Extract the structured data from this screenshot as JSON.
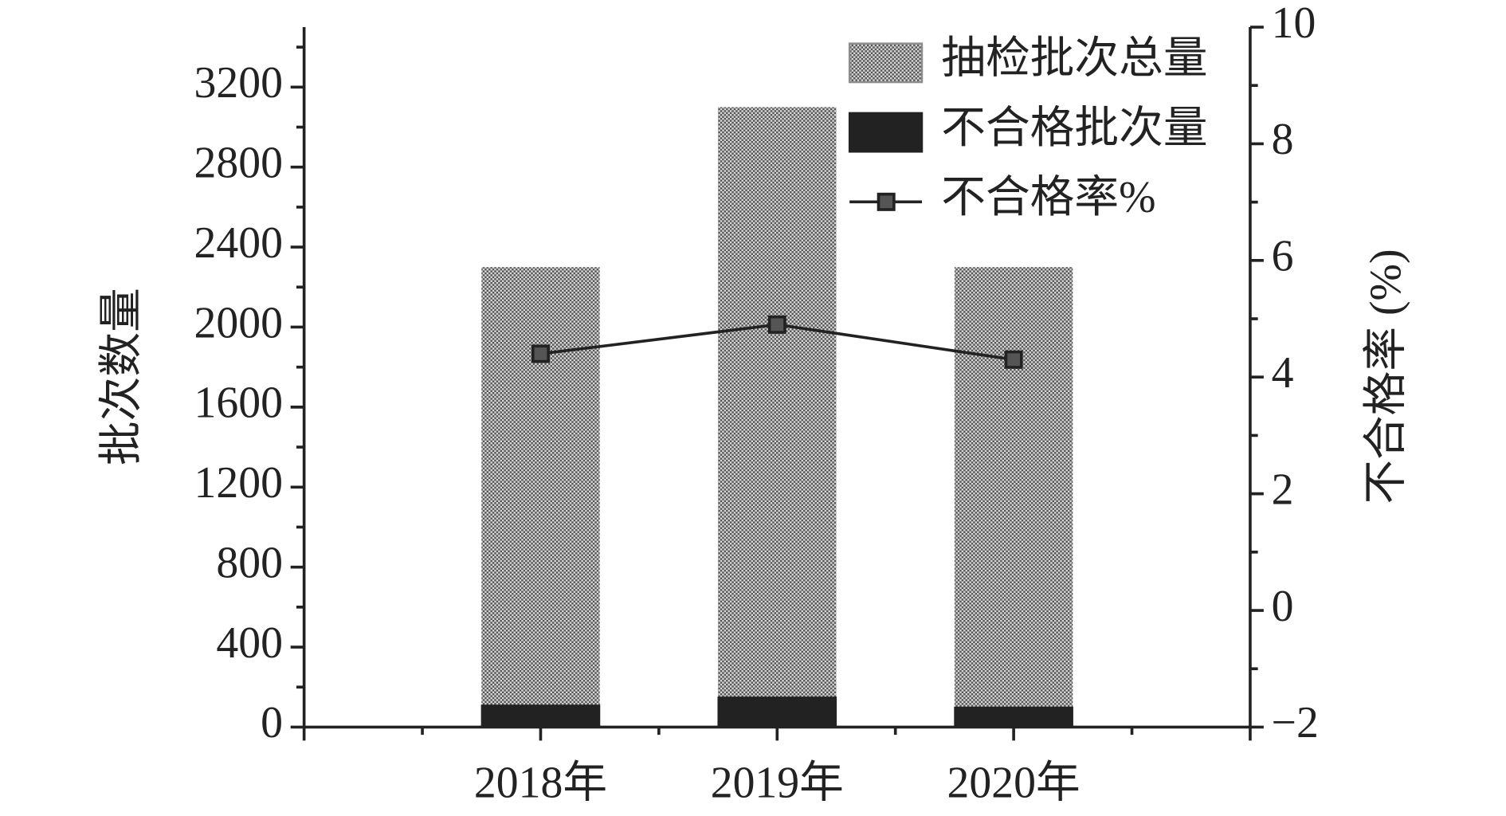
{
  "chart_data": {
    "type": "bar",
    "categories": [
      "2018年",
      "2019年",
      "2020年"
    ],
    "series": [
      {
        "name": "抽检批次总量",
        "type": "bar",
        "color": "#8c8c8c",
        "values": [
          2300,
          3100,
          2300
        ]
      },
      {
        "name": "不合格批次量",
        "type": "bar",
        "color": "#222222",
        "values": [
          110,
          150,
          100
        ]
      },
      {
        "name": "不合格率%",
        "type": "line",
        "axis": "y2",
        "color": "#222222",
        "values": [
          4.4,
          4.9,
          4.3
        ]
      }
    ],
    "y_label": "批次数量",
    "y2_label": "不合格率 (%)",
    "ylim": [
      0,
      3500
    ],
    "yticks": [
      0,
      400,
      800,
      1200,
      1600,
      2000,
      2400,
      2800,
      3200
    ],
    "y2lim": [
      -2,
      10
    ],
    "y2ticks": [
      {
        "value": -2,
        "label": "−2"
      },
      0,
      2,
      4,
      6,
      8,
      10
    ],
    "legend": "upper right"
  }
}
